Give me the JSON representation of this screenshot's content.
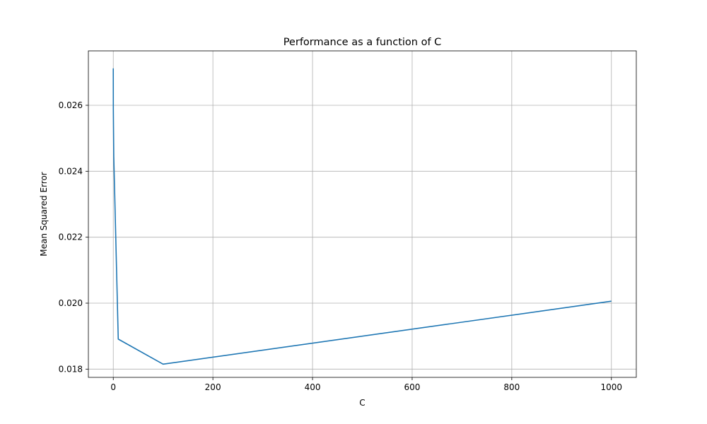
{
  "chart_data": {
    "type": "line",
    "title": "Performance as a function of C",
    "xlabel": "C",
    "ylabel": "Mean Squared Error",
    "xlim": [
      -50,
      1050
    ],
    "ylim": [
      0.01775,
      0.02765
    ],
    "grid": true,
    "x_ticks": [
      0,
      200,
      400,
      600,
      800,
      1000
    ],
    "x_tick_labels": [
      "0",
      "200",
      "400",
      "600",
      "800",
      "1000"
    ],
    "y_ticks": [
      0.018,
      0.02,
      0.022,
      0.024,
      0.026
    ],
    "y_tick_labels": [
      "0.018",
      "0.020",
      "0.022",
      "0.024",
      "0.026"
    ],
    "series": [
      {
        "color": "#1f77b4",
        "x": [
          0.01,
          0.1,
          1,
          10,
          100,
          1000
        ],
        "y": [
          0.02712,
          0.0259,
          0.02445,
          0.01891,
          0.01815,
          0.02006
        ]
      }
    ]
  }
}
